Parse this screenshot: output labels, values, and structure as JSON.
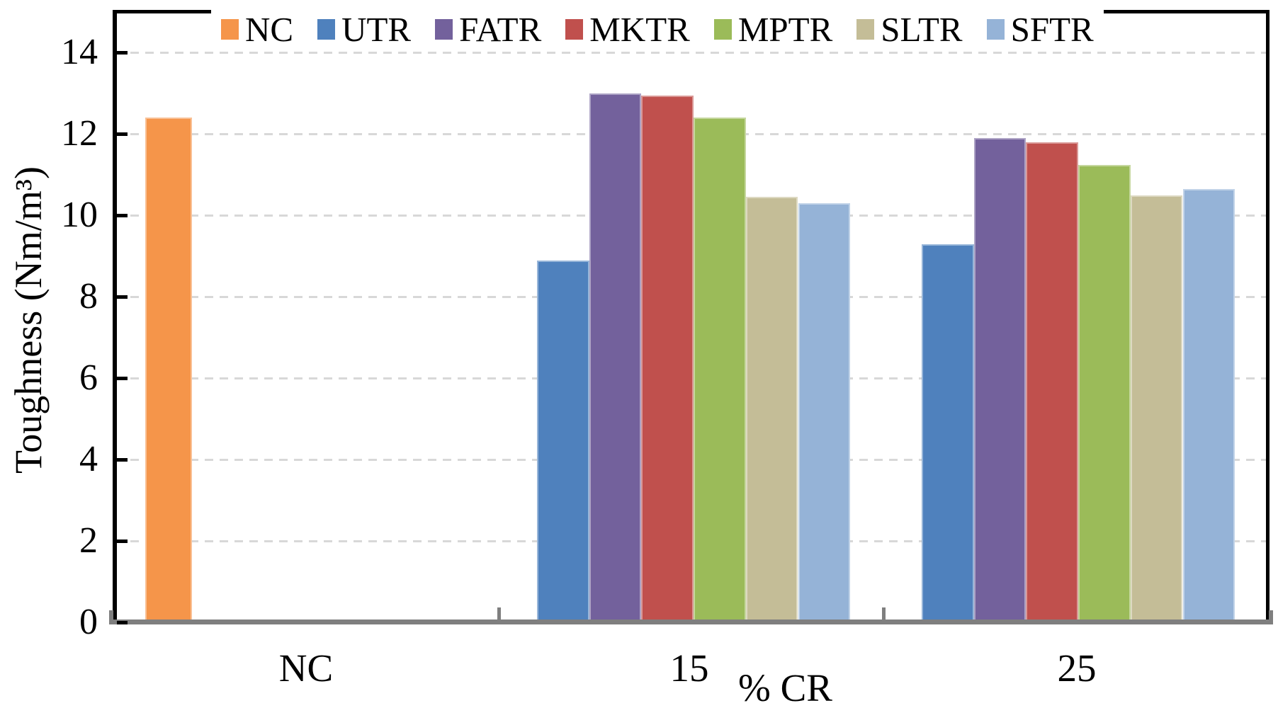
{
  "chart_data": {
    "type": "bar",
    "title": "",
    "xlabel": "% CR",
    "ylabel": "Toughness (Nm/m³)",
    "categories": [
      "NC",
      "15",
      "25"
    ],
    "series": [
      {
        "name": "NC",
        "color": "#F5954A",
        "values": [
          12.4,
          null,
          null
        ]
      },
      {
        "name": "UTR",
        "color": "#4F81BD",
        "values": [
          null,
          8.9,
          9.3
        ]
      },
      {
        "name": "FATR",
        "color": "#73619C",
        "values": [
          null,
          13.0,
          11.9
        ]
      },
      {
        "name": "MKTR",
        "color": "#C0504D",
        "values": [
          null,
          12.95,
          11.8
        ]
      },
      {
        "name": "MPTR",
        "color": "#9BBB59",
        "values": [
          null,
          12.4,
          11.25
        ]
      },
      {
        "name": "SLTR",
        "color": "#C4BD97",
        "values": [
          null,
          10.45,
          10.5
        ]
      },
      {
        "name": "SFTR",
        "color": "#95B3D7",
        "values": [
          null,
          10.3,
          10.65
        ]
      }
    ],
    "ylim": [
      0,
      15
    ],
    "yticks": [
      0,
      2,
      4,
      6,
      8,
      10,
      12,
      14
    ],
    "grid": "horizontal-dashed",
    "gridline_color": "#d8d8d8",
    "legend_position": "top",
    "axis_color_left": "#000000",
    "axis_color_bottom": "#7f7f7f"
  },
  "legend": {
    "items": [
      "NC",
      "UTR",
      "FATR",
      "MKTR",
      "MPTR",
      "SLTR",
      "SFTR"
    ]
  }
}
